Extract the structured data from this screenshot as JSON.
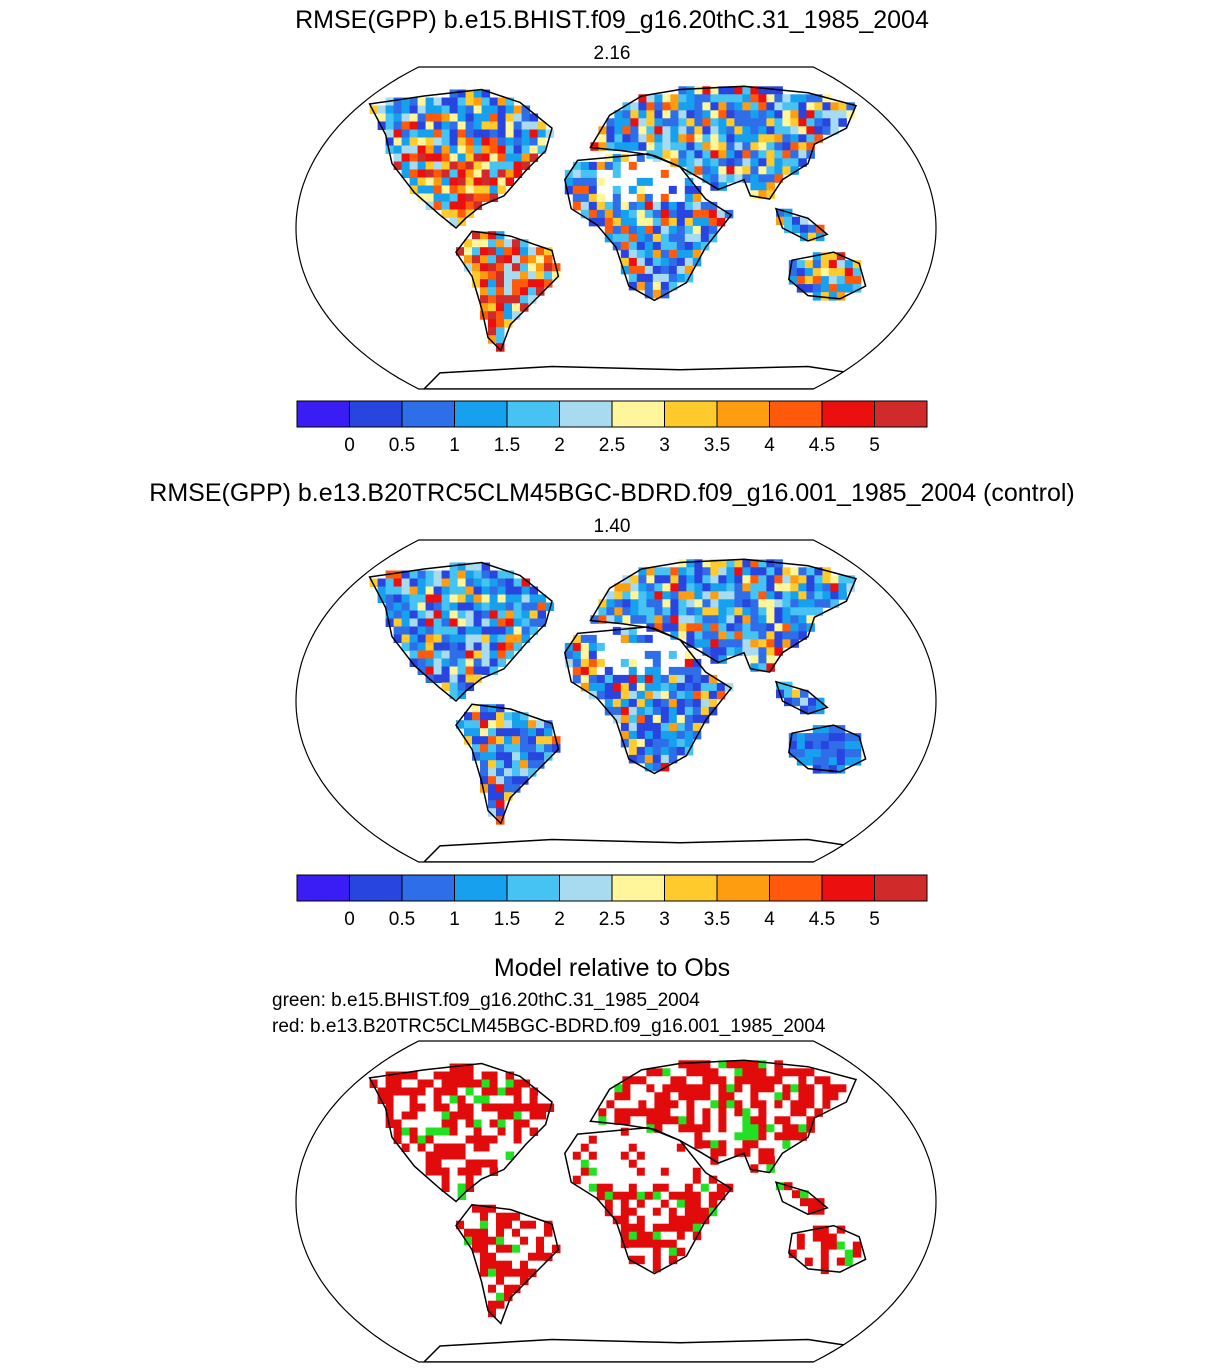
{
  "panels": [
    {
      "title": "RMSE(GPP) b.e15.BHIST.f09_g16.20thC.31_1985_2004",
      "value": "2.16"
    },
    {
      "title": "RMSE(GPP) b.e13.B20TRC5CLM45BGC-BDRD.f09_g16.001_1985_2004 (control)",
      "value": "1.40"
    },
    {
      "title": "Model relative to Obs",
      "legend_green": "green: b.e15.BHIST.f09_g16.20thC.31_1985_2004",
      "legend_red": "red: b.e13.B20TRC5CLM45BGC-BDRD.f09_g16.001_1985_2004"
    }
  ],
  "colorbar": {
    "colors": [
      "#3a1cf5",
      "#2845e0",
      "#2e6ee8",
      "#17a0ee",
      "#46c3f2",
      "#a8daf0",
      "#fff59a",
      "#ffcb2c",
      "#ff9d10",
      "#ff5a0c",
      "#ec0f0f",
      "#d12a2a"
    ],
    "labels": [
      "0",
      "0.5",
      "1",
      "1.5",
      "2",
      "2.5",
      "3",
      "3.5",
      "4",
      "4.5",
      "5"
    ]
  },
  "colors": {
    "green": "#22e022",
    "red": "#e20b0b"
  }
}
